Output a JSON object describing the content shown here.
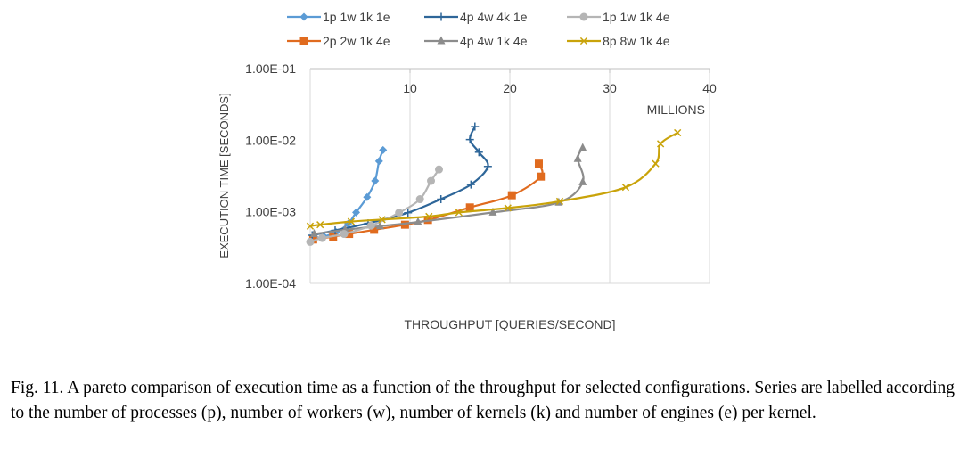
{
  "chart_data": {
    "type": "line",
    "title": "",
    "xlabel": "THROUGHPUT [QUERIES/SECOND]",
    "ylabel": "EXECUTION TIME [SECONDS]",
    "x_unit_label": "MILLIONS",
    "x_scale": "linear",
    "y_scale": "log",
    "xlim": [
      0,
      40
    ],
    "ylim": [
      0.0001,
      0.1
    ],
    "x_ticks": [
      0,
      10,
      20,
      30,
      40
    ],
    "x_tick_labels": [
      "",
      "10",
      "20",
      "30",
      "40"
    ],
    "y_ticks": [
      0.1,
      0.01,
      0.001,
      0.0001
    ],
    "y_tick_labels": [
      "1.00E-01",
      "1.00E-02",
      "1.00E-03",
      "1.00E-04"
    ],
    "grid": "vertical",
    "legend_position": "top",
    "series": [
      {
        "name": "1p 1w 1k 1e",
        "color": "#5B9BD5",
        "marker": "diamond",
        "points": [
          [
            0.2,
            0.00041
          ],
          [
            1.4,
            0.00045
          ],
          [
            2.6,
            0.00052
          ],
          [
            3.8,
            0.00068
          ],
          [
            4.6,
            0.00098
          ],
          [
            5.7,
            0.0016
          ],
          [
            6.5,
            0.0027
          ],
          [
            6.9,
            0.0051
          ],
          [
            7.3,
            0.0073
          ]
        ]
      },
      {
        "name": "2p 2w 1k 4e",
        "color": "#E06B1F",
        "marker": "square",
        "points": [
          [
            0.3,
            0.00041
          ],
          [
            2.3,
            0.00045
          ],
          [
            3.9,
            0.00049
          ],
          [
            6.4,
            0.00056
          ],
          [
            9.5,
            0.00066
          ],
          [
            11.8,
            0.00077
          ],
          [
            16.0,
            0.00115
          ],
          [
            20.2,
            0.0017
          ],
          [
            23.1,
            0.0031
          ],
          [
            22.9,
            0.0047
          ]
        ]
      },
      {
        "name": "4p 4w 4k 1e",
        "color": "#2E6699",
        "marker": "plus",
        "points": [
          [
            0.2,
            0.00047
          ],
          [
            2.5,
            0.00055
          ],
          [
            5.8,
            0.00069
          ],
          [
            9.8,
            0.00097
          ],
          [
            13.1,
            0.0015
          ],
          [
            16.1,
            0.0024
          ],
          [
            17.8,
            0.0043
          ],
          [
            16.9,
            0.0068
          ],
          [
            16.0,
            0.0102
          ],
          [
            16.5,
            0.0155
          ]
        ]
      },
      {
        "name": "4p 4w 1k 4e",
        "color": "#8C8C8C",
        "marker": "triangle",
        "points": [
          [
            0.4,
            0.00049
          ],
          [
            3.5,
            0.00056
          ],
          [
            7.0,
            0.00063
          ],
          [
            10.8,
            0.00072
          ],
          [
            18.3,
            0.00098
          ],
          [
            24.9,
            0.00135
          ],
          [
            27.3,
            0.0026
          ],
          [
            26.8,
            0.0055
          ],
          [
            27.3,
            0.0078
          ]
        ]
      },
      {
        "name": "1p 1w 1k 4e",
        "color": "#B5B5B5",
        "marker": "circle",
        "points": [
          [
            0.0,
            0.00038
          ],
          [
            1.2,
            0.00043
          ],
          [
            3.4,
            0.00049
          ],
          [
            6.1,
            0.00064
          ],
          [
            8.9,
            0.00097
          ],
          [
            11.0,
            0.0015
          ],
          [
            12.1,
            0.0027
          ],
          [
            12.9,
            0.0039
          ]
        ]
      },
      {
        "name": "8p 8w 1k 4e",
        "color": "#C9A30A",
        "marker": "x",
        "points": [
          [
            0.0,
            0.00063
          ],
          [
            1.0,
            0.00066
          ],
          [
            4.1,
            0.00073
          ],
          [
            7.2,
            0.00078
          ],
          [
            11.9,
            0.00086
          ],
          [
            14.9,
            0.00098
          ],
          [
            19.8,
            0.00113
          ],
          [
            25.0,
            0.0014
          ],
          [
            31.6,
            0.0022
          ],
          [
            34.6,
            0.0047
          ],
          [
            35.1,
            0.0089
          ],
          [
            36.8,
            0.0127
          ]
        ]
      }
    ]
  },
  "caption": "Fig. 11.  A pareto comparison of execution time as a function of the throughput for selected configurations. Series are labelled according to the number of processes (p), number of workers (w), number of kernels (k) and number of engines (e) per kernel."
}
